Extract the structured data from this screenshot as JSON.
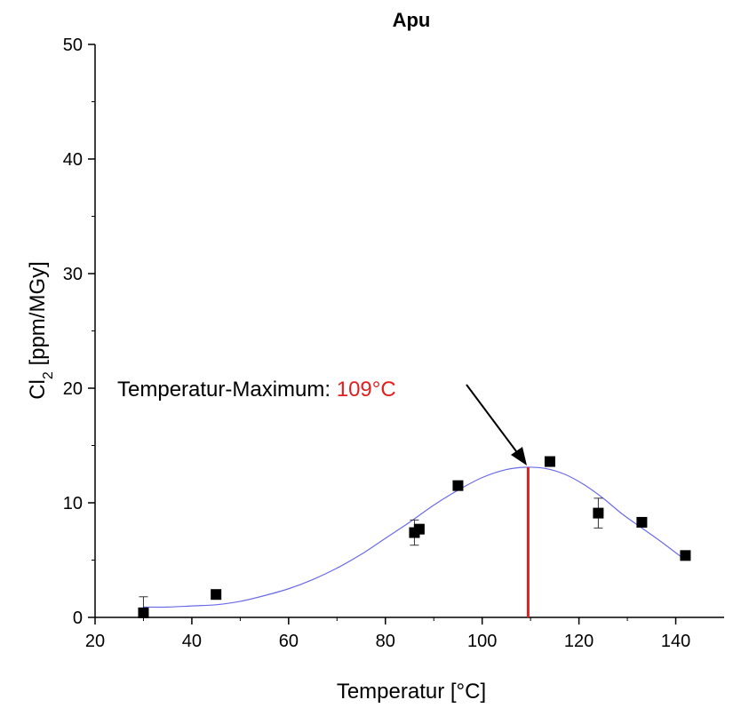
{
  "chart_data": {
    "type": "scatter",
    "title": "Apu",
    "xlabel": "Temperatur [°C]",
    "ylabel_main": "Cl",
    "ylabel_sub": "2",
    "ylabel_rest": " [ppm/MGy]",
    "xlim": [
      20,
      150
    ],
    "ylim": [
      0,
      50
    ],
    "xticks": [
      20,
      40,
      60,
      80,
      100,
      120,
      140
    ],
    "yticks": [
      0,
      10,
      20,
      30,
      40,
      50
    ],
    "grid": false,
    "points": [
      {
        "x": 30,
        "y": 0.4,
        "err": 1.4
      },
      {
        "x": 45,
        "y": 2.0,
        "err": 0.3
      },
      {
        "x": 86,
        "y": 7.4,
        "err": 1.1
      },
      {
        "x": 87,
        "y": 7.7,
        "err": 0.3
      },
      {
        "x": 95,
        "y": 11.5,
        "err": 0.3
      },
      {
        "x": 114,
        "y": 13.6,
        "err": 0.3
      },
      {
        "x": 124,
        "y": 9.1,
        "err": 1.3
      },
      {
        "x": 133,
        "y": 8.3,
        "err": 0.3
      },
      {
        "x": 142,
        "y": 5.4,
        "err": 0.3
      }
    ],
    "fit_curve": {
      "x": [
        30,
        35,
        40,
        45,
        50,
        55,
        60,
        65,
        70,
        75,
        80,
        85,
        90,
        95,
        100,
        105,
        109,
        113,
        117,
        121,
        125,
        129,
        133,
        137,
        142
      ],
      "y": [
        0.9,
        0.9,
        1.0,
        1.1,
        1.4,
        1.9,
        2.5,
        3.3,
        4.3,
        5.5,
        6.9,
        8.3,
        9.8,
        11.1,
        12.2,
        12.9,
        13.1,
        13.0,
        12.5,
        11.6,
        10.4,
        9.0,
        7.8,
        6.6,
        5.0
      ]
    },
    "vline_x": 109.5,
    "annotation": {
      "label": "Temperatur-Maximum: ",
      "value": "109°C"
    },
    "colors": {
      "marker": "#000000",
      "fit": "#6b6be8",
      "vline": "#e02020",
      "annotation_value": "#e02020"
    }
  }
}
